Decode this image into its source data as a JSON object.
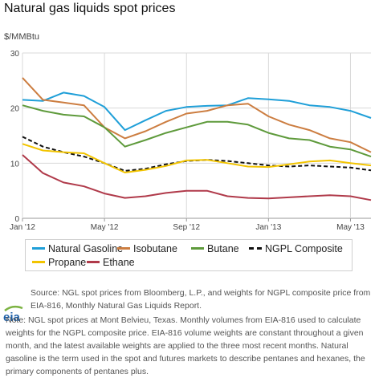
{
  "title": "Natural gas liquids spot prices",
  "chart_data": {
    "type": "line",
    "ylabel": "$/MMBtu",
    "xlabel": "",
    "ylim": [
      0,
      30
    ],
    "yticks": [
      0,
      10,
      20,
      30
    ],
    "xticks": [
      "Jan '12",
      "May '12",
      "Sep '12",
      "Jan '13",
      "May '13"
    ],
    "grid": true,
    "legend_placement": "bottom",
    "x": [
      "2012-01",
      "2012-02",
      "2012-03",
      "2012-04",
      "2012-05",
      "2012-06",
      "2012-07",
      "2012-08",
      "2012-09",
      "2012-10",
      "2012-11",
      "2012-12",
      "2013-01",
      "2013-02",
      "2013-03",
      "2013-04",
      "2013-05",
      "2013-06"
    ],
    "series": [
      {
        "name": "Natural Gasoline",
        "color": "#1f9fd8",
        "values": [
          21.5,
          21.3,
          22.8,
          22.2,
          20.2,
          16.0,
          17.8,
          19.5,
          20.2,
          20.4,
          20.5,
          21.8,
          21.6,
          21.3,
          20.5,
          20.2,
          19.5,
          18.2
        ]
      },
      {
        "name": "Isobutane",
        "color": "#cc7d40",
        "values": [
          25.5,
          21.5,
          21.0,
          20.5,
          16.5,
          14.5,
          15.8,
          17.5,
          19.0,
          19.5,
          20.5,
          20.8,
          18.5,
          17.0,
          16.0,
          14.5,
          13.8,
          12.0
        ]
      },
      {
        "name": "Butane",
        "color": "#5e9a3b",
        "values": [
          20.5,
          19.5,
          18.8,
          18.5,
          16.5,
          13.0,
          14.2,
          15.5,
          16.5,
          17.5,
          17.5,
          17.0,
          15.5,
          14.5,
          14.2,
          13.0,
          12.5,
          11.2
        ]
      },
      {
        "name": "NGPL Composite",
        "color": "#111111",
        "values": [
          14.8,
          13.0,
          12.0,
          11.2,
          10.0,
          8.6,
          9.0,
          9.8,
          10.4,
          10.6,
          10.4,
          10.0,
          9.6,
          9.4,
          9.6,
          9.4,
          9.2,
          8.7
        ]
      },
      {
        "name": "Propane",
        "color": "#f2c400",
        "values": [
          13.5,
          12.3,
          12.0,
          11.8,
          10.0,
          8.3,
          8.8,
          9.5,
          10.5,
          10.6,
          10.0,
          9.4,
          9.3,
          9.8,
          10.3,
          10.5,
          10.0,
          9.6
        ]
      },
      {
        "name": "Ethane",
        "color": "#b03a4a",
        "values": [
          11.5,
          8.2,
          6.5,
          5.8,
          4.5,
          3.7,
          4.0,
          4.6,
          5.0,
          5.0,
          4.0,
          3.7,
          3.6,
          3.8,
          4.0,
          4.2,
          4.0,
          3.3
        ]
      }
    ]
  },
  "source_text": "Source: NGL spot prices from Bloomberg, L.P., and weights for NGPL composite price from EIA-816, Monthly Natural Gas Liquids Report.",
  "note_text": "Note: NGL spot prices at Mont Belvieu, Texas. Monthly volumes from EIA-816 used to calculate weights for the NGPL composite price. EIA-816 volume weights are constant throughout a given month, and the latest available weights are applied to the three most recent months. Natural gasoline is the term used in the spot and futures markets to describe pentanes and hexanes, the primary components of pentanes plus.",
  "logo_text": "eia",
  "colors": {
    "logo_blue": "#1d5fa8",
    "logo_green": "#7cb342",
    "grid": "#d9d9d9"
  }
}
